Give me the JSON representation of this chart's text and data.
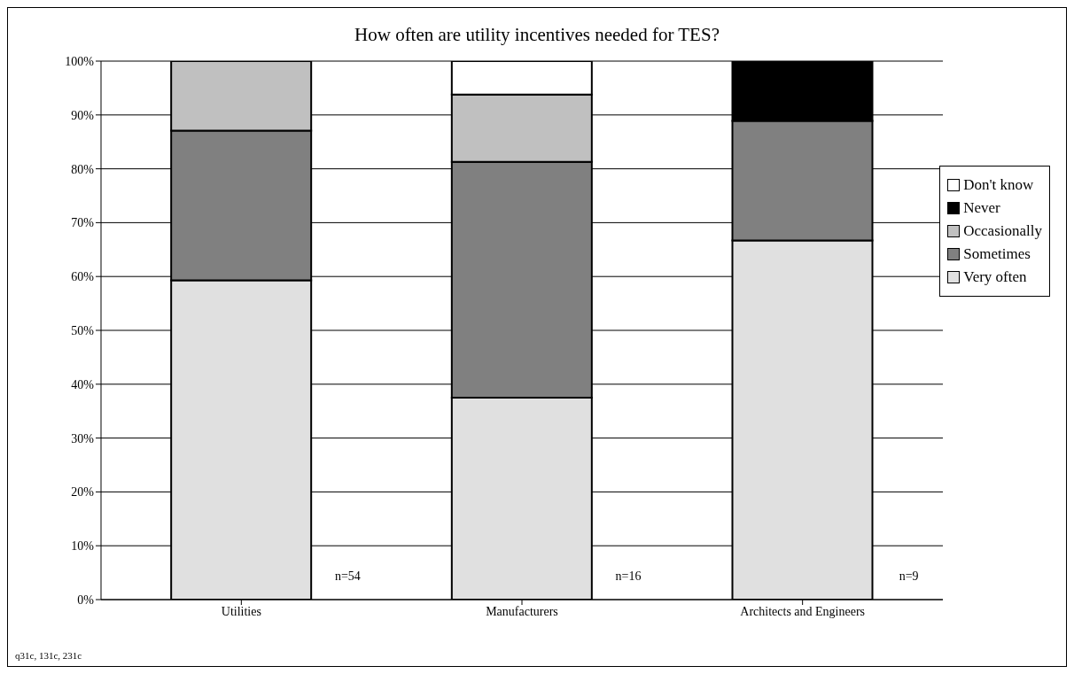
{
  "chart_data": {
    "type": "bar",
    "stacked": true,
    "title": "How often are utility incentives needed for TES?",
    "categories": [
      "Utilities",
      "Manufacturers",
      "Architects and Engineers"
    ],
    "series": [
      {
        "name": "Very often",
        "color": "#e0e0e0",
        "values": [
          59.3,
          37.5,
          66.7
        ]
      },
      {
        "name": "Sometimes",
        "color": "#808080",
        "values": [
          27.8,
          43.8,
          22.2
        ]
      },
      {
        "name": "Occasionally",
        "color": "#c0c0c0",
        "values": [
          13.0,
          12.5,
          null
        ]
      },
      {
        "name": "Never",
        "color": "#000000",
        "values": [
          null,
          null,
          11.1
        ]
      },
      {
        "name": "Don't know",
        "color": "#ffffff",
        "values": [
          null,
          6.2,
          null
        ]
      }
    ],
    "ylim": [
      0,
      100
    ],
    "yticks": [
      {
        "value": 0,
        "label": "0%"
      },
      {
        "value": 10,
        "label": "10%"
      },
      {
        "value": 20,
        "label": "20%"
      },
      {
        "value": 30,
        "label": "30%"
      },
      {
        "value": 40,
        "label": "40%"
      },
      {
        "value": 50,
        "label": "50%"
      },
      {
        "value": 60,
        "label": "60%"
      },
      {
        "value": 70,
        "label": "70%"
      },
      {
        "value": 80,
        "label": "80%"
      },
      {
        "value": 90,
        "label": "90%"
      },
      {
        "value": 100,
        "label": "100%"
      }
    ],
    "grid": "y",
    "legend": "right",
    "annotations": [
      "n=54",
      "n=16",
      "n=9",
      "q31c, 131c, 231c"
    ]
  }
}
